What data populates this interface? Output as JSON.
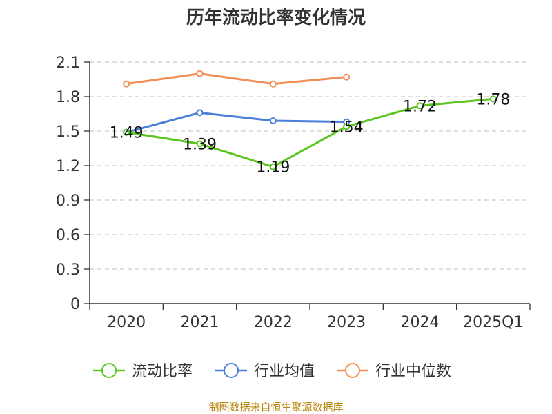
{
  "chart_data": {
    "type": "line",
    "title": "历年流动比率变化情况",
    "categories": [
      "2020",
      "2021",
      "2022",
      "2023",
      "2024",
      "2025Q1"
    ],
    "y_ticks": [
      "0",
      "0.3",
      "0.6",
      "0.9",
      "1.2",
      "1.5",
      "1.8",
      "2.1"
    ],
    "ylim": [
      0,
      2.1
    ],
    "grid": true,
    "legend_position": "bottom",
    "series": [
      {
        "name": "流动比率",
        "color": "#5cc51f",
        "values": [
          1.49,
          1.39,
          1.19,
          1.54,
          1.72,
          1.78
        ],
        "labels": [
          "1.49",
          "1.39",
          "1.19",
          "1.54",
          "1.72",
          "1.78"
        ]
      },
      {
        "name": "行业均值",
        "color": "#4a7fd8",
        "values": [
          1.49,
          1.66,
          1.59,
          1.58,
          null,
          null
        ]
      },
      {
        "name": "行业中位数",
        "color": "#f58d57",
        "values": [
          1.91,
          2.0,
          1.91,
          1.97,
          null,
          null
        ]
      }
    ],
    "source": "制图数据来自恒生聚源数据库"
  }
}
